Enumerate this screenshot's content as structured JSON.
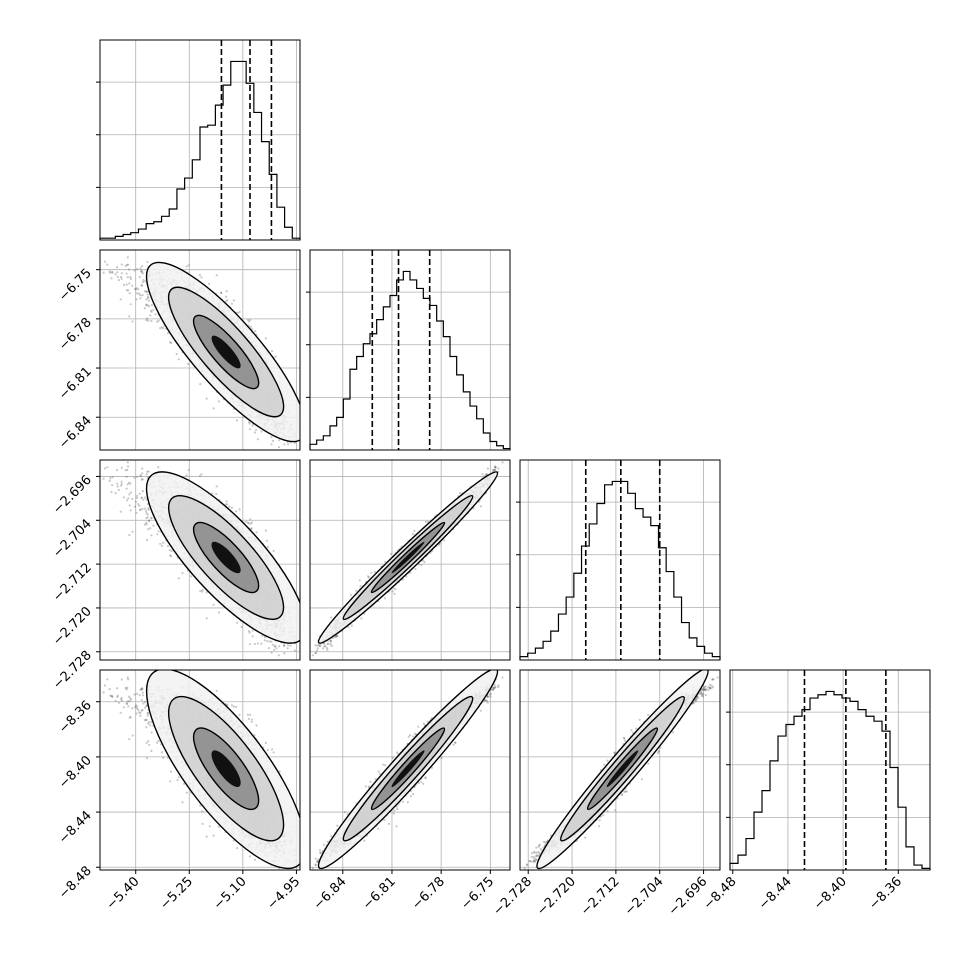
{
  "chart_data": {
    "type": "corner",
    "title": "",
    "grid": true,
    "parameters": [
      {
        "label": "",
        "range": [
          -5.5,
          -4.94
        ],
        "ticks": [
          "−5.40",
          "−5.25",
          "−5.10",
          "−4.95"
        ],
        "tick_values": [
          -5.4,
          -5.25,
          -5.1,
          -4.95
        ],
        "quantiles": [
          -5.16,
          -5.08,
          -5.02
        ]
      },
      {
        "label": "",
        "range": [
          -6.86,
          -6.738
        ],
        "ticks": [
          "−6.75",
          "−6.78",
          "−6.81",
          "−6.84"
        ],
        "tick_values": [
          -6.75,
          -6.78,
          -6.81,
          -6.84
        ],
        "quantiles": [
          -6.822,
          -6.806,
          -6.787
        ]
      },
      {
        "label": "",
        "range": [
          -2.7295,
          -2.693
        ],
        "ticks": [
          "−2.696",
          "−2.704",
          "−2.712",
          "−2.720",
          "−2.728"
        ],
        "tick_values": [
          -2.696,
          -2.704,
          -2.712,
          -2.72,
          -2.728
        ],
        "quantiles": [
          -2.7175,
          -2.7111,
          -2.704
        ]
      },
      {
        "label": "",
        "range": [
          -8.482,
          -8.337
        ],
        "ticks": [
          "−8.36",
          "−8.40",
          "−8.44",
          "−8.48"
        ],
        "tick_values": [
          -8.36,
          -8.4,
          -8.44,
          -8.48
        ],
        "quantiles": [
          -8.428,
          -8.398,
          -8.369
        ]
      }
    ],
    "histograms": [
      [
        1,
        1,
        2,
        3,
        4,
        6,
        9,
        10,
        13,
        17,
        28,
        34,
        44,
        62,
        63,
        74,
        85,
        98,
        98,
        86,
        70,
        54,
        36,
        18,
        7,
        1
      ],
      [
        4,
        7,
        10,
        17,
        23,
        36,
        57,
        66,
        75,
        82,
        92,
        101,
        109,
        120,
        126,
        120,
        114,
        107,
        102,
        91,
        80,
        66,
        53,
        41,
        31,
        22,
        12,
        6,
        3,
        1
      ],
      [
        2,
        4,
        7,
        11,
        17,
        27,
        37,
        51,
        67,
        80,
        92,
        103,
        105,
        105,
        98,
        89,
        84,
        79,
        66,
        52,
        37,
        22,
        13,
        8,
        4,
        2
      ],
      [
        4,
        9,
        19,
        35,
        48,
        66,
        81,
        88,
        93,
        97,
        104,
        106,
        108,
        106,
        104,
        102,
        97,
        93,
        90,
        84,
        62,
        38,
        14,
        3,
        1
      ]
    ],
    "correlations": [
      [
        1.0,
        -0.86,
        -0.82,
        -0.8
      ],
      [
        -0.86,
        1.0,
        0.985,
        0.975
      ],
      [
        -0.82,
        0.985,
        1.0,
        0.98
      ],
      [
        -0.8,
        0.975,
        0.98,
        1.0
      ]
    ],
    "style": {
      "hist_color": "#000000",
      "scatter_color": "#555555",
      "grid_color": "#b0b0b0"
    }
  }
}
